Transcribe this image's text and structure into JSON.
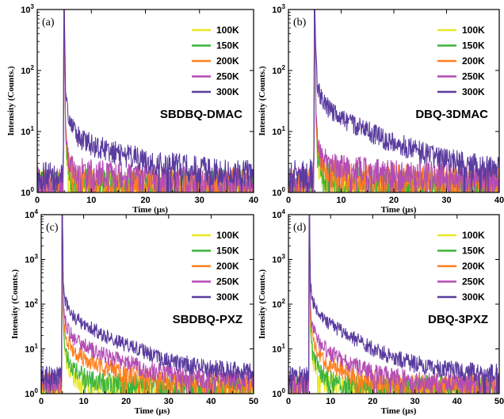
{
  "figure": {
    "background": "#ffffff"
  },
  "chart_data": [
    {
      "type": "line",
      "panel_label": "(a)",
      "sample_name": "SBDBQ-DMAC",
      "xlabel": "Time (μs)",
      "ylabel": "Intensity (Counts.)",
      "xlim": [
        0,
        40
      ],
      "ylim": [
        1,
        1000
      ],
      "yscale": "log",
      "xticks": [
        0,
        10,
        20,
        30,
        40
      ],
      "ytick_exponents": [
        0,
        1,
        2,
        3
      ],
      "legend": "top-right",
      "series": [
        {
          "name": "100K",
          "color": "#e8e824",
          "x": [
            0,
            4.8,
            5.0,
            5.2,
            5.5,
            6,
            7,
            8,
            10,
            15,
            20,
            30,
            40
          ],
          "y": [
            1.2,
            1.2,
            1000,
            12,
            3.0,
            1.8,
            1.4,
            1.3,
            1.25,
            1.2,
            1.2,
            1.2,
            1.2
          ]
        },
        {
          "name": "150K",
          "color": "#3cb33c",
          "x": [
            0,
            4.8,
            5.0,
            5.2,
            5.5,
            6,
            7,
            8,
            10,
            15,
            20,
            30,
            40
          ],
          "y": [
            1.25,
            1.25,
            1000,
            14,
            3.3,
            2.0,
            1.55,
            1.4,
            1.32,
            1.27,
            1.25,
            1.25,
            1.25
          ]
        },
        {
          "name": "200K",
          "color": "#ff7f1e",
          "x": [
            0,
            4.8,
            5.0,
            5.2,
            5.5,
            6,
            7,
            8,
            10,
            15,
            20,
            30,
            40
          ],
          "y": [
            1.3,
            1.3,
            1000,
            16,
            4.0,
            2.4,
            1.8,
            1.6,
            1.5,
            1.4,
            1.35,
            1.3,
            1.3
          ]
        },
        {
          "name": "250K",
          "color": "#b44cb4",
          "x": [
            0,
            4.8,
            5.0,
            5.2,
            5.5,
            6,
            7,
            8,
            10,
            15,
            20,
            30,
            40
          ],
          "y": [
            1.4,
            1.4,
            1000,
            20,
            5.0,
            3.0,
            2.4,
            2.2,
            2.0,
            1.8,
            1.65,
            1.55,
            1.5
          ]
        },
        {
          "name": "300K",
          "color": "#5a3c9e",
          "x": [
            0,
            4.8,
            5.0,
            5.2,
            5.5,
            6,
            7,
            8,
            10,
            15,
            20,
            25,
            30,
            35,
            40
          ],
          "y": [
            1.8,
            1.8,
            1000,
            60,
            25,
            14,
            9.5,
            7.5,
            6.0,
            4.3,
            3.3,
            2.7,
            2.3,
            2.1,
            2.0
          ]
        }
      ]
    },
    {
      "type": "line",
      "panel_label": "(b)",
      "sample_name": "DBQ-3DMAC",
      "xlabel": "Time (μs)",
      "ylabel": "Intensity (Counts.)",
      "xlim": [
        0,
        40
      ],
      "ylim": [
        1,
        1000
      ],
      "yscale": "log",
      "xticks": [
        0,
        10,
        20,
        30,
        40
      ],
      "ytick_exponents": [
        0,
        1,
        2,
        3
      ],
      "legend": "top-right",
      "series": [
        {
          "name": "100K",
          "color": "#e8e824",
          "x": [
            0,
            4.8,
            5.0,
            5.2,
            5.5,
            6,
            7,
            8,
            10,
            15,
            20,
            30,
            40
          ],
          "y": [
            1.3,
            1.3,
            1000,
            15,
            3.6,
            2.1,
            1.6,
            1.45,
            1.35,
            1.3,
            1.3,
            1.3,
            1.3
          ]
        },
        {
          "name": "150K",
          "color": "#3cb33c",
          "x": [
            0,
            4.8,
            5.0,
            5.2,
            5.5,
            6,
            7,
            8,
            10,
            15,
            20,
            30,
            40
          ],
          "y": [
            1.3,
            1.3,
            1000,
            18,
            4.2,
            2.4,
            1.8,
            1.6,
            1.45,
            1.35,
            1.3,
            1.3,
            1.3
          ]
        },
        {
          "name": "200K",
          "color": "#ff7f1e",
          "x": [
            0,
            4.8,
            5.0,
            5.2,
            5.5,
            6,
            7,
            8,
            10,
            15,
            20,
            30,
            40
          ],
          "y": [
            1.4,
            1.4,
            1000,
            22,
            5.5,
            3.2,
            2.4,
            2.1,
            1.9,
            1.7,
            1.6,
            1.5,
            1.45
          ]
        },
        {
          "name": "250K",
          "color": "#b44cb4",
          "x": [
            0,
            4.8,
            5.0,
            5.2,
            5.5,
            6,
            7,
            8,
            10,
            15,
            20,
            30,
            40
          ],
          "y": [
            1.6,
            1.6,
            1000,
            28,
            7.0,
            4.2,
            3.2,
            2.8,
            2.5,
            2.2,
            2.0,
            1.8,
            1.7
          ]
        },
        {
          "name": "300K",
          "color": "#5a3c9e",
          "x": [
            0,
            4.8,
            5.0,
            5.2,
            5.5,
            6,
            7,
            8,
            10,
            15,
            20,
            25,
            30,
            35,
            40
          ],
          "y": [
            2.0,
            2.0,
            1000,
            150,
            60,
            40,
            28,
            22,
            16,
            10,
            6.5,
            4.5,
            3.3,
            2.7,
            2.3
          ]
        }
      ]
    },
    {
      "type": "line",
      "panel_label": "(c)",
      "sample_name": "SBDBQ-PXZ",
      "xlabel": "Time (μs)",
      "ylabel": "Intensity (Counts.)",
      "xlim": [
        0,
        50
      ],
      "ylim": [
        1,
        10000
      ],
      "yscale": "log",
      "xticks": [
        0,
        10,
        20,
        30,
        40,
        50
      ],
      "ytick_exponents": [
        0,
        1,
        2,
        3,
        4
      ],
      "legend": "top-right",
      "series": [
        {
          "name": "100K",
          "color": "#e8e824",
          "x": [
            0,
            4.8,
            5.0,
            5.2,
            5.5,
            6,
            7,
            8,
            10,
            15,
            20,
            30,
            40,
            50
          ],
          "y": [
            1.3,
            1.3,
            10000,
            40,
            10,
            5.0,
            3.0,
            2.2,
            1.7,
            1.4,
            1.3,
            1.3,
            1.3,
            1.3
          ]
        },
        {
          "name": "150K",
          "color": "#3cb33c",
          "x": [
            0,
            4.8,
            5.0,
            5.2,
            5.5,
            6,
            7,
            8,
            10,
            15,
            20,
            30,
            40,
            50
          ],
          "y": [
            1.4,
            1.4,
            10000,
            50,
            14,
            7.5,
            4.5,
            3.3,
            2.3,
            1.7,
            1.5,
            1.4,
            1.4,
            1.4
          ]
        },
        {
          "name": "200K",
          "color": "#ff7f1e",
          "x": [
            0,
            4.8,
            5.0,
            5.2,
            5.5,
            6,
            7,
            8,
            10,
            15,
            20,
            25,
            30,
            40,
            50
          ],
          "y": [
            1.6,
            1.6,
            10000,
            70,
            28,
            17,
            11,
            8.5,
            6.0,
            3.8,
            2.8,
            2.2,
            1.9,
            1.7,
            1.6
          ]
        },
        {
          "name": "250K",
          "color": "#b44cb4",
          "x": [
            0,
            4.8,
            5.0,
            5.2,
            5.5,
            6,
            7,
            8,
            10,
            15,
            20,
            25,
            30,
            40,
            50
          ],
          "y": [
            1.8,
            1.8,
            10000,
            100,
            50,
            32,
            22,
            17,
            12,
            7.0,
            4.8,
            3.4,
            2.7,
            2.1,
            1.9
          ]
        },
        {
          "name": "300K",
          "color": "#5a3c9e",
          "x": [
            0,
            4.8,
            5.0,
            5.2,
            5.5,
            6,
            7,
            8,
            10,
            15,
            20,
            25,
            30,
            35,
            40,
            50
          ],
          "y": [
            2.5,
            2.5,
            10000,
            250,
            140,
            95,
            65,
            50,
            36,
            20,
            12,
            8.0,
            5.5,
            4.3,
            3.6,
            3.0
          ]
        }
      ]
    },
    {
      "type": "line",
      "panel_label": "(d)",
      "sample_name": "DBQ-3PXZ",
      "xlabel": "Time (μs)",
      "ylabel": "Intensity (Counts.)",
      "xlim": [
        0,
        50
      ],
      "ylim": [
        1,
        10000
      ],
      "yscale": "log",
      "xticks": [
        0,
        10,
        20,
        30,
        40,
        50
      ],
      "ytick_exponents": [
        0,
        1,
        2,
        3,
        4
      ],
      "legend": "top-right",
      "series": [
        {
          "name": "100K",
          "color": "#e8e824",
          "x": [
            0,
            4.8,
            5.0,
            5.2,
            5.5,
            6,
            7,
            8,
            10,
            15,
            20,
            30,
            40,
            50
          ],
          "y": [
            1.3,
            1.3,
            10000,
            30,
            8.0,
            4.2,
            2.6,
            2.0,
            1.6,
            1.35,
            1.3,
            1.3,
            1.3,
            1.3
          ]
        },
        {
          "name": "150K",
          "color": "#3cb33c",
          "x": [
            0,
            4.8,
            5.0,
            5.2,
            5.5,
            6,
            7,
            8,
            10,
            15,
            20,
            30,
            40,
            50
          ],
          "y": [
            1.4,
            1.4,
            10000,
            40,
            11,
            6.0,
            3.8,
            2.8,
            2.0,
            1.5,
            1.4,
            1.4,
            1.4,
            1.4
          ]
        },
        {
          "name": "200K",
          "color": "#ff7f1e",
          "x": [
            0,
            4.8,
            5.0,
            5.2,
            5.5,
            6,
            7,
            8,
            10,
            15,
            20,
            25,
            30,
            40,
            50
          ],
          "y": [
            1.5,
            1.5,
            10000,
            60,
            22,
            13,
            8.5,
            6.3,
            4.3,
            2.6,
            1.9,
            1.6,
            1.5,
            1.5,
            1.5
          ]
        },
        {
          "name": "250K",
          "color": "#b44cb4",
          "x": [
            0,
            4.8,
            5.0,
            5.2,
            5.5,
            6,
            7,
            8,
            10,
            15,
            20,
            25,
            30,
            40,
            50
          ],
          "y": [
            1.7,
            1.7,
            10000,
            90,
            40,
            25,
            16,
            12,
            8.0,
            4.5,
            2.9,
            2.2,
            1.9,
            1.7,
            1.7
          ]
        },
        {
          "name": "300K",
          "color": "#5a3c9e",
          "x": [
            0,
            4.8,
            5.0,
            5.2,
            5.5,
            6,
            7,
            8,
            10,
            15,
            20,
            25,
            30,
            35,
            40,
            50
          ],
          "y": [
            2.5,
            2.5,
            10000,
            300,
            160,
            100,
            70,
            52,
            35,
            18,
            10,
            6.5,
            4.6,
            3.7,
            3.2,
            2.8
          ]
        }
      ]
    }
  ]
}
